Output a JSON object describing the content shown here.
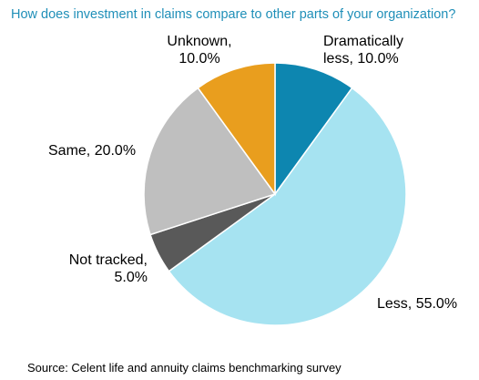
{
  "chart_data": {
    "type": "pie",
    "title": "How does investment in claims compare to other parts of your organization?",
    "source": "Source: Celent life and annuity claims benchmarking survey",
    "slices": [
      {
        "name": "Dramatically less",
        "value": 10.0,
        "color": "#0d86b0",
        "label_line1": "Dramatically",
        "label_line2": "less, 10.0%"
      },
      {
        "name": "Less",
        "value": 55.0,
        "color": "#a6e3f1",
        "label_line1": "Less, 55.0%",
        "label_line2": ""
      },
      {
        "name": "Not tracked",
        "value": 5.0,
        "color": "#595959",
        "label_line1": "Not tracked,",
        "label_line2": "5.0%"
      },
      {
        "name": "Same",
        "value": 20.0,
        "color": "#bfbfbf",
        "label_line1": "Same, 20.0%",
        "label_line2": ""
      },
      {
        "name": "Unknown",
        "value": 10.0,
        "color": "#e99e1e",
        "label_line1": "Unknown,",
        "label_line2": "10.0%"
      }
    ],
    "start_angle": "12 o'clock",
    "direction": "clockwise",
    "legend": "none"
  }
}
